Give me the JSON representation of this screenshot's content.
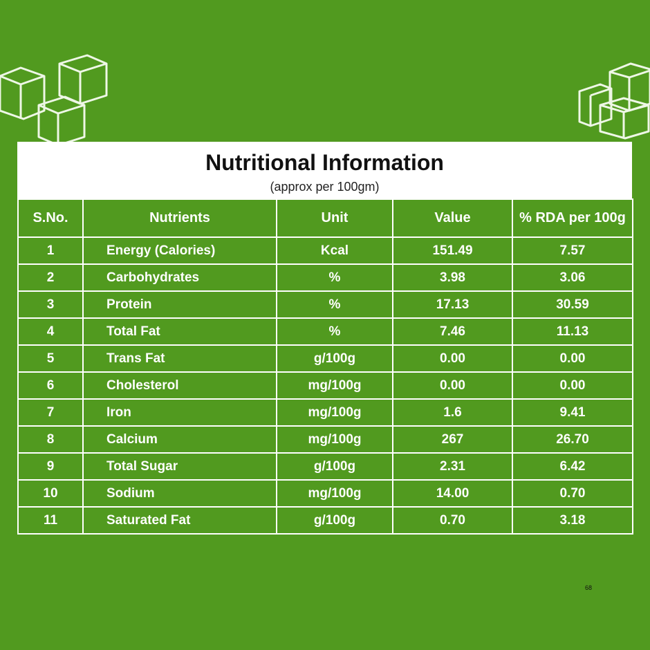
{
  "header": {
    "title": "Nutritional Information",
    "subtitle": "(approx per 100gm)"
  },
  "table": {
    "columns": [
      "S.No.",
      "Nutrients",
      "Unit",
      "Value",
      "% RDA per 100g"
    ],
    "rows": [
      [
        "1",
        "Energy (Calories)",
        "Kcal",
        "151.49",
        "7.57"
      ],
      [
        "2",
        "Carbohydrates",
        "%",
        "3.98",
        "3.06"
      ],
      [
        "3",
        "Protein",
        "%",
        "17.13",
        "30.59"
      ],
      [
        "4",
        "Total Fat",
        "%",
        "7.46",
        "11.13"
      ],
      [
        "5",
        "Trans Fat",
        "g/100g",
        "0.00",
        "0.00"
      ],
      [
        "6",
        "Cholesterol",
        "mg/100g",
        "0.00",
        "0.00"
      ],
      [
        "7",
        "Iron",
        "mg/100g",
        "1.6",
        "9.41"
      ],
      [
        "8",
        "Calcium",
        "mg/100g",
        "267",
        "26.70"
      ],
      [
        "9",
        "Total Sugar",
        "g/100g",
        "2.31",
        "6.42"
      ],
      [
        "10",
        "Sodium",
        "mg/100g",
        "14.00",
        "0.70"
      ],
      [
        "11",
        "Saturated Fat",
        "g/100g",
        "0.70",
        "3.18"
      ]
    ]
  },
  "page_number": "68"
}
